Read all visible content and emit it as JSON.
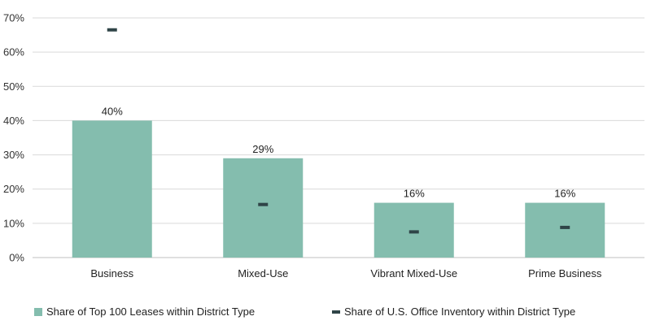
{
  "colors": {
    "bar": "#84bdae",
    "marker": "#2f4447",
    "grid": "#d9d9d9",
    "axis": "#bfbfbf"
  },
  "chart_data": {
    "type": "bar",
    "categories": [
      "Business",
      "Mixed-Use",
      "Vibrant Mixed-Use",
      "Prime Business"
    ],
    "series": [
      {
        "name": "Share of Top 100 Leases within District Type",
        "kind": "bar",
        "values": [
          40,
          29,
          16,
          16
        ],
        "data_labels": [
          "40%",
          "29%",
          "16%",
          "16%"
        ]
      },
      {
        "name": "Share of U.S. Office Inventory within District Type",
        "kind": "marker",
        "values": [
          66.5,
          15.5,
          7.5,
          8.8
        ]
      }
    ],
    "ylim": [
      0,
      70
    ],
    "yticks": [
      0,
      10,
      20,
      30,
      40,
      50,
      60,
      70
    ],
    "ytick_labels": [
      "0%",
      "10%",
      "20%",
      "30%",
      "40%",
      "50%",
      "60%",
      "70%"
    ],
    "grid": true,
    "legend_position": "bottom",
    "title": "",
    "xlabel": "",
    "ylabel": ""
  }
}
